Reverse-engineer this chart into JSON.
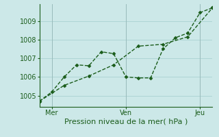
{
  "xlabel": "Pression niveau de la mer( hPa )",
  "bg_color": "#cce8e8",
  "line_color": "#1a5c1a",
  "grid_color": "#aed4d4",
  "vline_color": "#99bbbb",
  "xlim": [
    0,
    14
  ],
  "ylim": [
    1004.4,
    1009.9
  ],
  "yticks": [
    1005,
    1006,
    1007,
    1008,
    1009
  ],
  "xtick_positions": [
    1,
    7,
    13
  ],
  "xtick_labels": [
    "Mer",
    "Ven",
    "Jeu"
  ],
  "vline_positions": [
    1,
    7,
    13
  ],
  "series1_x": [
    0,
    1,
    2,
    3,
    4,
    5,
    6,
    7,
    8,
    9,
    10,
    11,
    12,
    13,
    14
  ],
  "series1_y": [
    1004.7,
    1005.2,
    1006.0,
    1006.65,
    1006.6,
    1007.35,
    1007.25,
    1006.0,
    1005.95,
    1005.95,
    1007.5,
    1008.1,
    1008.35,
    1009.45,
    1009.7
  ],
  "series2_x": [
    0,
    2,
    4,
    6,
    8,
    10,
    12,
    14
  ],
  "series2_y": [
    1004.7,
    1005.55,
    1006.05,
    1006.65,
    1007.65,
    1007.75,
    1008.15,
    1009.7
  ],
  "marker": "D",
  "markersize": 2.5,
  "linewidth": 1.0,
  "tick_fontsize": 7,
  "xlabel_fontsize": 8
}
